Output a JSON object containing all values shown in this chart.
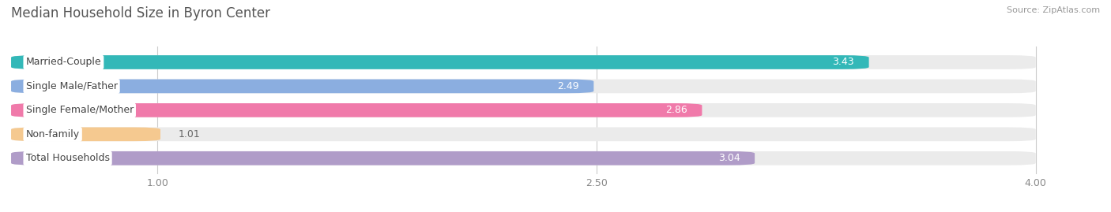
{
  "title": "Median Household Size in Byron Center",
  "source": "Source: ZipAtlas.com",
  "categories": [
    "Married-Couple",
    "Single Male/Father",
    "Single Female/Mother",
    "Non-family",
    "Total Households"
  ],
  "values": [
    3.43,
    2.49,
    2.86,
    1.01,
    3.04
  ],
  "bar_colors": [
    "#33b8b8",
    "#8baee0",
    "#f07aaa",
    "#f5c990",
    "#b09cc8"
  ],
  "background_color": "#ffffff",
  "bar_bg_color": "#ebebeb",
  "xlim": [
    0.5,
    4.2
  ],
  "data_min": 0.5,
  "data_max": 4.0,
  "xticks": [
    1.0,
    2.5,
    4.0
  ],
  "bar_height": 0.58,
  "bar_gap": 1.0,
  "title_fontsize": 12,
  "label_fontsize": 9,
  "value_fontsize": 9,
  "tick_fontsize": 9
}
